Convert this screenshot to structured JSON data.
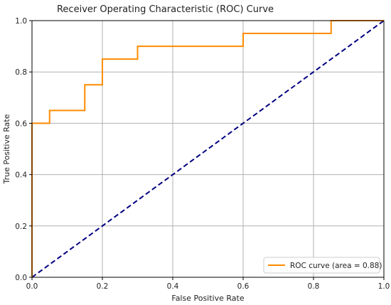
{
  "chart_data": {
    "type": "line",
    "title": "Receiver Operating Characteristic (ROC) Curve",
    "xlabel": "False Positive Rate",
    "ylabel": "True Positive Rate",
    "xlim": [
      0.0,
      1.0
    ],
    "ylim": [
      0.0,
      1.0
    ],
    "x_ticks": [
      "0.0",
      "0.2",
      "0.4",
      "0.6",
      "0.8",
      "1.0"
    ],
    "y_ticks": [
      "0.0",
      "0.2",
      "0.4",
      "0.6",
      "0.8",
      "1.0"
    ],
    "grid": true,
    "legend_position": "lower-right",
    "series": [
      {
        "name": "ROC curve (area = 0.88)",
        "color": "#ff8c00",
        "style": "solid",
        "x": [
          0.0,
          0.0,
          0.05,
          0.05,
          0.15,
          0.15,
          0.2,
          0.2,
          0.3,
          0.3,
          0.6,
          0.6,
          0.85,
          0.85,
          1.0
        ],
        "y": [
          0.0,
          0.6,
          0.6,
          0.65,
          0.65,
          0.75,
          0.75,
          0.85,
          0.85,
          0.9,
          0.9,
          0.95,
          0.95,
          1.0,
          1.0
        ]
      },
      {
        "color": "#000080",
        "style": "dashed",
        "x": [
          0.0,
          1.0
        ],
        "y": [
          0.0,
          1.0
        ]
      }
    ]
  }
}
